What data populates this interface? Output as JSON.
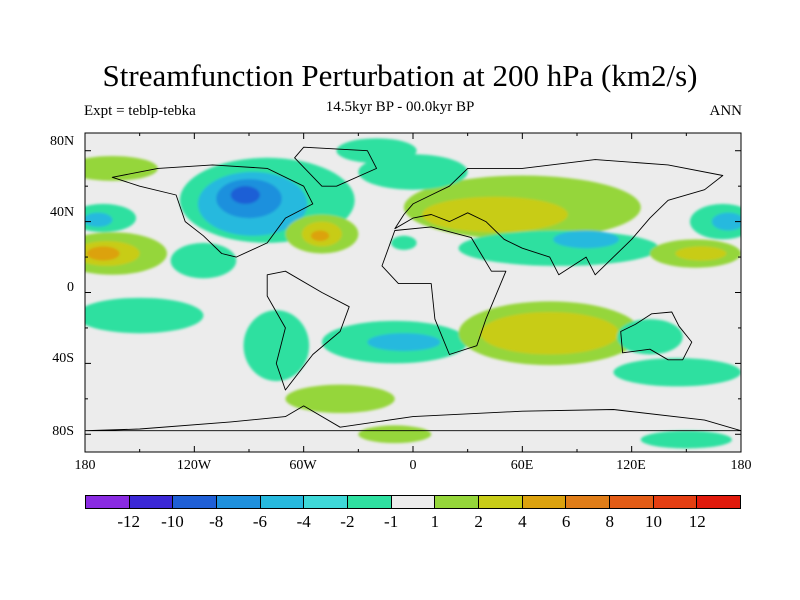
{
  "title": "Streamfunction Perturbation at 200 hPa (km2/s)",
  "left_label": "Expt = teblp-tebka",
  "center_label": "14.5kyr BP - 00.0kyr BP",
  "right_label": "ANN",
  "lat_labels": [
    "80N",
    "40N",
    "0",
    "40S",
    "80S"
  ],
  "lon_labels": [
    "180",
    "120W",
    "60W",
    "0",
    "60E",
    "120E",
    "180"
  ],
  "colorbar": {
    "colors": [
      "#8a2be2",
      "#3b28d6",
      "#1f5fd6",
      "#1e90dd",
      "#27b9de",
      "#3ed8d8",
      "#2ee0a0",
      "#ececec",
      "#95d63a",
      "#c8cc18",
      "#dca20e",
      "#e07d18",
      "#e35c16",
      "#e43e12",
      "#e11a0c"
    ],
    "labels": [
      "-12",
      "-10",
      "-8",
      "-6",
      "-4",
      "-2",
      "-1",
      "1",
      "2",
      "4",
      "6",
      "8",
      "10",
      "12"
    ]
  },
  "map": {
    "background_color": "#ececec",
    "lat_range": [
      -90,
      90
    ],
    "lon_range": [
      -180,
      180
    ],
    "features": [
      {
        "name": "na-highlat-negative",
        "color": "#2ee0a0",
        "lon": -80,
        "lat": 52,
        "rlon": 48,
        "rlat": 24
      },
      {
        "name": "na-blue-outer",
        "color": "#27b9de",
        "lon": -88,
        "lat": 50,
        "rlon": 30,
        "rlat": 18
      },
      {
        "name": "na-blue-mid",
        "color": "#1e90dd",
        "lon": -90,
        "lat": 53,
        "rlon": 18,
        "rlat": 11
      },
      {
        "name": "na-blue-core",
        "color": "#1f5fd6",
        "lon": -92,
        "lat": 55,
        "rlon": 8,
        "rlat": 5
      },
      {
        "name": "arctic-band-negative",
        "color": "#2ee0a0",
        "lon": -20,
        "lat": 80,
        "rlon": 22,
        "rlat": 7
      },
      {
        "name": "n-pacific-green-band",
        "color": "#95d63a",
        "lon": -165,
        "lat": 70,
        "rlon": 25,
        "rlat": 7
      },
      {
        "name": "atlantic-high-green",
        "color": "#95d63a",
        "lon": -50,
        "lat": 33,
        "rlon": 20,
        "rlat": 11
      },
      {
        "name": "atlantic-high-yellow",
        "color": "#c8cc18",
        "lon": -50,
        "lat": 33,
        "rlon": 11,
        "rlat": 7
      },
      {
        "name": "atlantic-high-orange",
        "color": "#dca20e",
        "lon": -51,
        "lat": 32,
        "rlon": 5,
        "rlat": 3
      },
      {
        "name": "pacific-west-negative",
        "color": "#2ee0a0",
        "lon": -170,
        "lat": 42,
        "rlon": 18,
        "rlat": 8
      },
      {
        "name": "pacific-west-negative-inner",
        "color": "#27b9de",
        "lon": -173,
        "lat": 41,
        "rlon": 8,
        "rlat": 4
      },
      {
        "name": "pacific-high-green",
        "color": "#95d63a",
        "lon": -165,
        "lat": 22,
        "rlon": 30,
        "rlat": 12
      },
      {
        "name": "pacific-high-yellow",
        "color": "#c8cc18",
        "lon": -168,
        "lat": 22,
        "rlon": 18,
        "rlat": 7
      },
      {
        "name": "pacific-high-orange",
        "color": "#dca20e",
        "lon": -170,
        "lat": 22,
        "rlon": 9,
        "rlat": 4
      },
      {
        "name": "gulf-negative",
        "color": "#2ee0a0",
        "lon": -115,
        "lat": 18,
        "rlon": 18,
        "rlat": 10
      },
      {
        "name": "eurasia-positive",
        "color": "#95d63a",
        "lon": 60,
        "lat": 48,
        "rlon": 65,
        "rlat": 18
      },
      {
        "name": "eurasia-positive-yellow",
        "color": "#c8cc18",
        "lon": 45,
        "lat": 44,
        "rlon": 40,
        "rlat": 10
      },
      {
        "name": "europe-negative",
        "color": "#2ee0a0",
        "lon": 0,
        "lat": 68,
        "rlon": 30,
        "rlat": 10
      },
      {
        "name": "asia-negative",
        "color": "#2ee0a0",
        "lon": 80,
        "lat": 25,
        "rlon": 55,
        "rlat": 10
      },
      {
        "name": "asia-negative-inner",
        "color": "#27b9de",
        "lon": 95,
        "lat": 30,
        "rlon": 18,
        "rlat": 5
      },
      {
        "name": "africa-negative",
        "color": "#2ee0a0",
        "lon": -5,
        "lat": 28,
        "rlon": 7,
        "rlat": 4
      },
      {
        "name": "w-pacific-negative",
        "color": "#2ee0a0",
        "lon": 170,
        "lat": 40,
        "rlon": 18,
        "rlat": 10
      },
      {
        "name": "w-pacific-negative-inner",
        "color": "#27b9de",
        "lon": 173,
        "lat": 40,
        "rlon": 9,
        "rlat": 5
      },
      {
        "name": "nw-pacific-positive",
        "color": "#95d63a",
        "lon": 155,
        "lat": 22,
        "rlon": 25,
        "rlat": 8
      },
      {
        "name": "nw-pacific-positive-yellow",
        "color": "#c8cc18",
        "lon": 158,
        "lat": 22,
        "rlon": 14,
        "rlat": 4
      },
      {
        "name": "s-pacific-negative",
        "color": "#2ee0a0",
        "lon": -150,
        "lat": -13,
        "rlon": 35,
        "rlat": 10
      },
      {
        "name": "s-america-negative",
        "color": "#2ee0a0",
        "lon": -75,
        "lat": -30,
        "rlon": 18,
        "rlat": 20
      },
      {
        "name": "s-atlantic-negative",
        "color": "#2ee0a0",
        "lon": -10,
        "lat": -28,
        "rlon": 40,
        "rlat": 12
      },
      {
        "name": "s-atlantic-negative-inner",
        "color": "#27b9de",
        "lon": -5,
        "lat": -28,
        "rlon": 20,
        "rlat": 5
      },
      {
        "name": "indian-ocean-positive",
        "color": "#95d63a",
        "lon": 75,
        "lat": -23,
        "rlon": 50,
        "rlat": 18
      },
      {
        "name": "indian-ocean-positive-yellow",
        "color": "#c8cc18",
        "lon": 75,
        "lat": -23,
        "rlon": 38,
        "rlat": 12
      },
      {
        "name": "australia-negative",
        "color": "#2ee0a0",
        "lon": 130,
        "lat": -25,
        "rlon": 18,
        "rlat": 10
      },
      {
        "name": "s-ocean-green",
        "color": "#95d63a",
        "lon": -40,
        "lat": -60,
        "rlon": 30,
        "rlat": 8
      },
      {
        "name": "s-ocean-east-negative",
        "color": "#2ee0a0",
        "lon": 145,
        "lat": -45,
        "rlon": 35,
        "rlat": 8
      },
      {
        "name": "antarctic-green",
        "color": "#95d63a",
        "lon": -10,
        "lat": -80,
        "rlon": 20,
        "rlat": 5
      },
      {
        "name": "antarctic-east-negative",
        "color": "#2ee0a0",
        "lon": 150,
        "lat": -83,
        "rlon": 25,
        "rlat": 5
      }
    ],
    "land": [
      [
        [
          -165,
          65
        ],
        [
          -140,
          70
        ],
        [
          -110,
          72
        ],
        [
          -80,
          70
        ],
        [
          -60,
          60
        ],
        [
          -55,
          50
        ],
        [
          -70,
          42
        ],
        [
          -80,
          28
        ],
        [
          -97,
          20
        ],
        [
          -105,
          22
        ],
        [
          -115,
          32
        ],
        [
          -125,
          40
        ],
        [
          -130,
          55
        ],
        [
          -150,
          60
        ],
        [
          -165,
          65
        ]
      ],
      [
        [
          -80,
          10
        ],
        [
          -70,
          12
        ],
        [
          -50,
          0
        ],
        [
          -35,
          -8
        ],
        [
          -40,
          -22
        ],
        [
          -55,
          -35
        ],
        [
          -70,
          -55
        ],
        [
          -75,
          -40
        ],
        [
          -70,
          -20
        ],
        [
          -80,
          -2
        ],
        [
          -80,
          10
        ]
      ],
      [
        [
          -17,
          15
        ],
        [
          -10,
          35
        ],
        [
          10,
          37
        ],
        [
          32,
          31
        ],
        [
          43,
          12
        ],
        [
          51,
          12
        ],
        [
          40,
          -15
        ],
        [
          35,
          -30
        ],
        [
          20,
          -35
        ],
        [
          12,
          -15
        ],
        [
          10,
          5
        ],
        [
          -8,
          5
        ],
        [
          -17,
          15
        ]
      ],
      [
        [
          -10,
          36
        ],
        [
          -5,
          44
        ],
        [
          0,
          50
        ],
        [
          10,
          55
        ],
        [
          20,
          60
        ],
        [
          30,
          70
        ],
        [
          60,
          70
        ],
        [
          100,
          75
        ],
        [
          140,
          72
        ],
        [
          170,
          66
        ],
        [
          160,
          58
        ],
        [
          140,
          52
        ],
        [
          130,
          42
        ],
        [
          120,
          30
        ],
        [
          110,
          20
        ],
        [
          100,
          10
        ],
        [
          95,
          20
        ],
        [
          80,
          10
        ],
        [
          75,
          20
        ],
        [
          60,
          25
        ],
        [
          50,
          30
        ],
        [
          40,
          40
        ],
        [
          30,
          45
        ],
        [
          20,
          40
        ],
        [
          10,
          44
        ],
        [
          0,
          42
        ],
        [
          -10,
          36
        ]
      ],
      [
        [
          114,
          -22
        ],
        [
          122,
          -18
        ],
        [
          131,
          -12
        ],
        [
          142,
          -11
        ],
        [
          146,
          -19
        ],
        [
          153,
          -28
        ],
        [
          148,
          -38
        ],
        [
          140,
          -38
        ],
        [
          130,
          -32
        ],
        [
          115,
          -34
        ],
        [
          114,
          -22
        ]
      ],
      [
        [
          -180,
          -78
        ],
        [
          -150,
          -77
        ],
        [
          -100,
          -73
        ],
        [
          -70,
          -70
        ],
        [
          -60,
          -64
        ],
        [
          -40,
          -76
        ],
        [
          0,
          -70
        ],
        [
          60,
          -67
        ],
        [
          110,
          -66
        ],
        [
          160,
          -72
        ],
        [
          180,
          -78
        ]
      ],
      [
        [
          -50,
          60
        ],
        [
          -42,
          60
        ],
        [
          -20,
          70
        ],
        [
          -25,
          80
        ],
        [
          -60,
          82
        ],
        [
          -65,
          76
        ],
        [
          -50,
          60
        ]
      ]
    ]
  }
}
